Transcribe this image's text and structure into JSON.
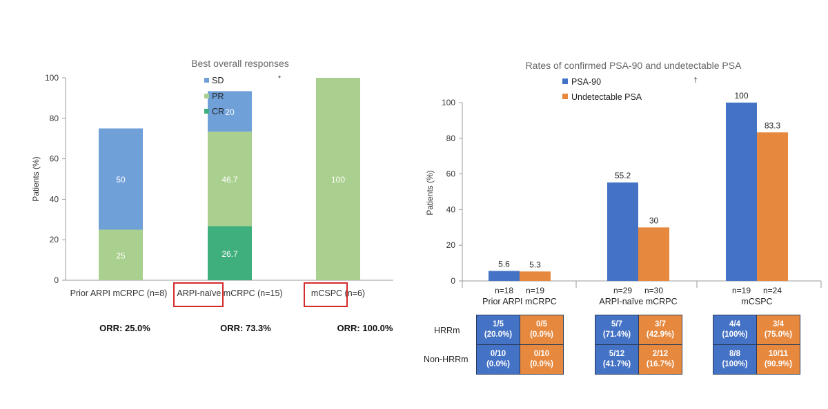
{
  "colors": {
    "sd": "#6fa0d8",
    "pr": "#a9d08e",
    "cr": "#3faf7e",
    "psa90": "#4472c4",
    "undetectable": "#e6883e",
    "highlight": "#d42a2a"
  },
  "left": {
    "title": "Best overall responses",
    "star": "*",
    "legend": [
      "SD",
      "PR",
      "CR"
    ],
    "orr": [
      "ORR: 25.0%",
      "ORR: 73.3%",
      "ORR: 100.0%"
    ],
    "highlighted_labels": [
      "ARPI-naïve",
      "mCSPC"
    ]
  },
  "right": {
    "title": "Rates of confirmed PSA-90 and undetectable PSA",
    "dagger": "†",
    "row_labels": [
      "HRRm",
      "Non-HRRm"
    ],
    "tables": [
      {
        "cells": [
          [
            "1/5",
            "(20.0%)",
            "0/5",
            "(0.0%)"
          ],
          [
            "0/10",
            "(0.0%)",
            "0/10",
            "(0.0%)"
          ]
        ]
      },
      {
        "cells": [
          [
            "5/7",
            "(71.4%)",
            "3/7",
            "(42.9%)"
          ],
          [
            "5/12",
            "(41.7%)",
            "2/12",
            "(16.7%)"
          ]
        ]
      },
      {
        "cells": [
          [
            "4/4",
            "(100%)",
            "3/4",
            "(75.0%)"
          ],
          [
            "8/8",
            "(100%)",
            "10/11",
            "(90.9%)"
          ]
        ]
      }
    ]
  },
  "chart_data": [
    {
      "type": "bar",
      "stacked": true,
      "title": "Best overall responses",
      "ylabel": "Patients (%)",
      "xlabel": "",
      "ylim": [
        0,
        100
      ],
      "yticks": [
        0,
        20,
        40,
        60,
        80,
        100
      ],
      "categories": [
        "Prior ARPI mCRPC (n=8)",
        "ARPI-naïve mCRPC (n=15)",
        "mCSPC (n=6)"
      ],
      "series": [
        {
          "name": "CR",
          "values": [
            0,
            26.7,
            0
          ],
          "labels": [
            "",
            "26.7",
            ""
          ]
        },
        {
          "name": "PR",
          "values": [
            25,
            46.7,
            100
          ],
          "labels": [
            "25",
            "46.7",
            "100"
          ]
        },
        {
          "name": "SD",
          "values": [
            50,
            20,
            0
          ],
          "labels": [
            "50",
            "20",
            ""
          ]
        }
      ],
      "legend": "top",
      "grid": false
    },
    {
      "type": "bar",
      "title": "Rates of confirmed PSA-90 and undetectable PSA",
      "ylabel": "Patients (%)",
      "xlabel": "",
      "ylim": [
        0,
        100
      ],
      "yticks": [
        0,
        20,
        40,
        60,
        80,
        100
      ],
      "categories": [
        "Prior ARPI mCRPC",
        "ARPI-naïve mCRPC",
        "mCSPC"
      ],
      "series": [
        {
          "name": "PSA-90",
          "values": [
            5.6,
            55.2,
            100
          ],
          "labels": [
            "5.6",
            "55.2",
            "100"
          ],
          "n": [
            "n=18",
            "n=29",
            "n=19"
          ]
        },
        {
          "name": "Undetectable PSA",
          "values": [
            5.3,
            30,
            83.3
          ],
          "labels": [
            "5.3",
            "30",
            "83.3"
          ],
          "n": [
            "n=19",
            "n=30",
            "n=24"
          ]
        }
      ],
      "legend": "top-left",
      "grid": false
    }
  ]
}
